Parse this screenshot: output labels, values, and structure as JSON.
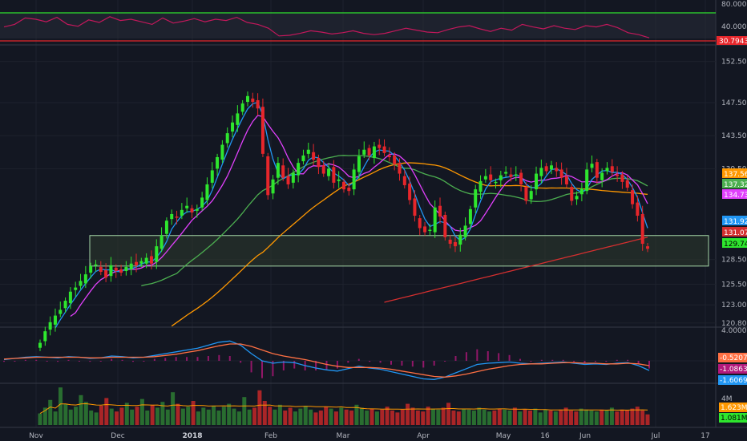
{
  "colors": {
    "background": "#131722",
    "grid": "#1e222d",
    "up": "#2ee62e",
    "down": "#e6262b",
    "axis_text": "#b2b5be",
    "ma_fast": "#e040fb",
    "ma_blue": "#2196f3",
    "ma_green": "#4caf50",
    "ma_orange": "#ff9800",
    "ma_red": "#d32f2f",
    "rsi_line": "#c2185b",
    "rsi_band_fill": "#2a2e39",
    "support_zone_fill": "#2e3b2e",
    "support_zone_border": "#a5d6a7",
    "macd_line": "#2196f3",
    "signal_line": "#ff7043",
    "hist_pos": "#b2187b",
    "volume_up": "#2e7d32",
    "volume_down": "#c62828"
  },
  "chart_data": [
    {
      "type": "line",
      "panel": "rsi",
      "y_ticks": [
        "80.0000",
        "40.0000"
      ],
      "levels": {
        "upper": 70,
        "lower": 30
      },
      "current_label": "30.7943",
      "series": [
        {
          "values": [
            48,
            52,
            62,
            60,
            56,
            63,
            52,
            49,
            59,
            55,
            64,
            58,
            60,
            56,
            52,
            62,
            54,
            57,
            61,
            56,
            60,
            58,
            63,
            55,
            52,
            46,
            34,
            35,
            38,
            42,
            40,
            37,
            39,
            42,
            38,
            36,
            38,
            42,
            46,
            43,
            40,
            39,
            44,
            48,
            50,
            45,
            41,
            46,
            43,
            52,
            48,
            45,
            50,
            46,
            44,
            50,
            48,
            52,
            47,
            39,
            36,
            31
          ]
        }
      ]
    },
    {
      "type": "candlestick",
      "panel": "price",
      "x_ticks": [
        "Nov",
        "Dec",
        "2018",
        "Feb",
        "Mar",
        "Apr",
        "May",
        "16",
        "Jun",
        "Jul",
        "17"
      ],
      "y_ticks": [
        "152.50",
        "147.50",
        "143.50",
        "139.50",
        "128.50",
        "125.50",
        "123.00",
        "120.80"
      ],
      "price_labels": [
        {
          "text": "137.56",
          "color": "#ff9800"
        },
        {
          "text": "137.32",
          "color": "#4caf50"
        },
        {
          "text": "134.73",
          "color": "#e040fb"
        },
        {
          "text": "131.92",
          "color": "#2196f3"
        },
        {
          "text": "131.07",
          "color": "#d32f2f"
        },
        {
          "text": "129.74",
          "color": "#2ee62e"
        }
      ],
      "support_zone": [
        127.7,
        131.4
      ],
      "candles_close": [
        118.4,
        119.8,
        120.9,
        121.7,
        122.4,
        123.5,
        124.6,
        125.1,
        125.9,
        126.7,
        127.7,
        127.9,
        127.0,
        126.3,
        127.8,
        127.1,
        126.9,
        127.6,
        128.0,
        127.8,
        128.3,
        128.7,
        128.0,
        130.1,
        131.4,
        133.2,
        134.0,
        133.6,
        134.5,
        135.0,
        134.2,
        134.6,
        136.0,
        137.6,
        139.3,
        140.9,
        142.4,
        143.8,
        145.1,
        146.2,
        147.4,
        148.3,
        147.6,
        146.8,
        141.3,
        136.3,
        138.2,
        140.2,
        138.4,
        137.6,
        139.0,
        140.2,
        141.1,
        141.8,
        140.6,
        139.7,
        138.9,
        139.5,
        137.8,
        138.2,
        137.0,
        136.8,
        139.4,
        141.0,
        141.8,
        141.1,
        142.2,
        142.0,
        141.4,
        140.9,
        140.0,
        138.9,
        137.5,
        135.7,
        133.8,
        132.3,
        131.8,
        132.1,
        134.8,
        133.7,
        131.2,
        130.4,
        130.1,
        131.5,
        132.6,
        134.6,
        137.0,
        138.0,
        138.6,
        138.1,
        137.9,
        138.7,
        139.1,
        138.5,
        138.8,
        137.6,
        135.6,
        136.8,
        138.9,
        139.6,
        139.2,
        139.9,
        139.2,
        138.4,
        137.6,
        135.6,
        136.2,
        137.1,
        139.4,
        140.1,
        138.4,
        139.0,
        139.6,
        139.1,
        138.6,
        137.9,
        137.2,
        135.2,
        133.8,
        130.4,
        129.8
      ],
      "moving_averages": {
        "ma_fast": "magenta",
        "ma_blue": "blue",
        "ma_green": "green",
        "ma_orange": "orange",
        "ma_red": "red"
      }
    },
    {
      "type": "line",
      "panel": "macd",
      "y_ticks": [
        "4.0000"
      ],
      "value_labels": [
        {
          "text": "-0.5207",
          "color": "#ff7043"
        },
        {
          "text": "-1.0863",
          "color": "#b2187b"
        },
        {
          "text": "-1.6069",
          "color": "#2196f3"
        }
      ],
      "series": [
        {
          "values": [
            0.2,
            0.4,
            0.6,
            0.7,
            0.6,
            0.5,
            0.7,
            0.6,
            0.4,
            0.5,
            0.8,
            0.7,
            0.5,
            0.6,
            0.9,
            1.2,
            1.5,
            1.8,
            2.1,
            2.6,
            3.1,
            3.3,
            2.6,
            1.2,
            0.0,
            -0.4,
            -0.2,
            -0.3,
            -0.8,
            -1.2,
            -1.5,
            -1.7,
            -1.3,
            -0.9,
            -1.2,
            -1.4,
            -1.8,
            -2.2,
            -2.6,
            -3.0,
            -3.1,
            -2.7,
            -2.0,
            -1.3,
            -0.6,
            -0.4,
            -0.3,
            -0.2,
            -0.4,
            -0.5,
            -0.4,
            -0.3,
            -0.2,
            -0.4,
            -0.6,
            -0.5,
            -0.6,
            -0.4,
            -0.3,
            -0.8,
            -1.6
          ]
        },
        {
          "values": [
            0.3,
            0.4,
            0.5,
            0.6,
            0.6,
            0.6,
            0.6,
            0.6,
            0.5,
            0.5,
            0.6,
            0.6,
            0.6,
            0.6,
            0.7,
            0.9,
            1.1,
            1.4,
            1.7,
            2.1,
            2.5,
            2.8,
            2.8,
            2.4,
            1.8,
            1.2,
            0.8,
            0.5,
            0.2,
            -0.2,
            -0.6,
            -0.9,
            -1.1,
            -1.1,
            -1.1,
            -1.2,
            -1.4,
            -1.7,
            -2.0,
            -2.3,
            -2.6,
            -2.7,
            -2.5,
            -2.2,
            -1.8,
            -1.4,
            -1.1,
            -0.8,
            -0.6,
            -0.5,
            -0.5,
            -0.4,
            -0.3,
            -0.3,
            -0.4,
            -0.4,
            -0.5,
            -0.5,
            -0.4,
            -0.5,
            -0.8
          ]
        }
      ]
    },
    {
      "type": "bar",
      "panel": "volume",
      "y_ticks": [
        "4M"
      ],
      "value_labels": [
        {
          "text": "1.623M",
          "color": "#ff9800"
        },
        {
          "text": "1.081M",
          "color": "#2ee62e"
        }
      ],
      "values": [
        1.2,
        1.8,
        2.6,
        1.4,
        3.9,
        2.2,
        1.6,
        1.9,
        3.1,
        2.4,
        1.5,
        1.3,
        2.0,
        2.8,
        1.7,
        1.4,
        1.8,
        2.3,
        1.6,
        1.9,
        2.7,
        1.5,
        2.1,
        1.8,
        2.4,
        1.6,
        3.4,
        2.2,
        1.7,
        1.9,
        2.5,
        1.4,
        1.8,
        1.6,
        2.0,
        1.5,
        1.9,
        2.2,
        1.7,
        1.4,
        2.9,
        1.6,
        1.8,
        3.6,
        2.5,
        1.9,
        1.6,
        2.1,
        1.5,
        1.8,
        1.4,
        1.7,
        2.0,
        1.6,
        1.3,
        1.5,
        1.9,
        1.7,
        1.4,
        1.8,
        1.6,
        1.5,
        2.1,
        1.8,
        1.5,
        1.7,
        1.4,
        1.6,
        1.9,
        1.5,
        1.3,
        1.6,
        2.2,
        1.8,
        1.5,
        1.4,
        1.9,
        1.7,
        1.6,
        1.8,
        2.3,
        1.5,
        1.4,
        1.7,
        1.6,
        1.5,
        1.8,
        1.6,
        1.4,
        1.5,
        1.7,
        1.6,
        1.5,
        1.8,
        1.4,
        1.6,
        1.5,
        1.7,
        1.3,
        1.6,
        1.5,
        1.4,
        1.6,
        1.8,
        1.5,
        1.4,
        1.7,
        1.6,
        1.5,
        1.4,
        1.6,
        1.5,
        1.8,
        1.4,
        1.6,
        1.5,
        1.7,
        1.9,
        1.5,
        1.1
      ]
    }
  ]
}
